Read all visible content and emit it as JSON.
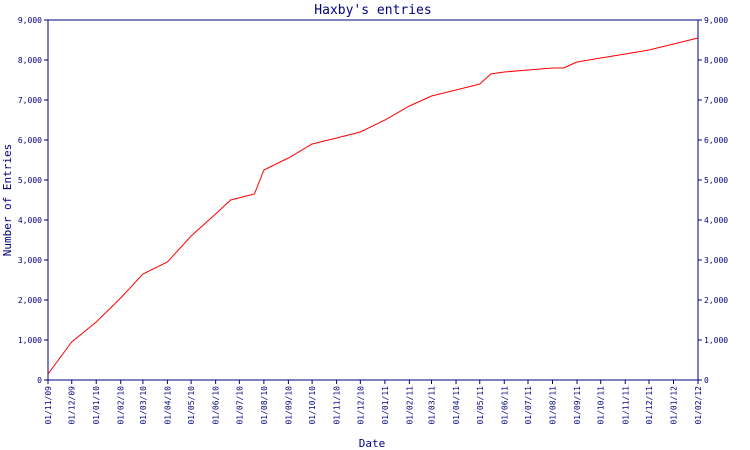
{
  "chart_data": {
    "type": "line",
    "title": "Haxby's entries",
    "xlabel": "Date",
    "ylabel": "Number of Entries",
    "ylim": [
      0,
      9000
    ],
    "yticks": [
      0,
      1000,
      2000,
      3000,
      4000,
      5000,
      6000,
      7000,
      8000,
      9000
    ],
    "ytick_labels": [
      "0",
      "1,000",
      "2,000",
      "3,000",
      "4,000",
      "5,000",
      "6,000",
      "7,000",
      "8,000",
      "9,000"
    ],
    "xticks": [
      "01/11/09",
      "01/12/09",
      "01/01/10",
      "01/02/10",
      "01/03/10",
      "01/04/10",
      "01/05/10",
      "01/06/10",
      "01/07/10",
      "01/08/10",
      "01/09/10",
      "01/10/10",
      "01/11/10",
      "01/12/10",
      "01/01/11",
      "01/02/11",
      "01/03/11",
      "01/04/11",
      "01/05/11",
      "01/06/11",
      "01/07/11",
      "01/08/11",
      "01/09/11",
      "01/10/11",
      "01/11/11",
      "01/12/11",
      "01/01/12",
      "01/02/12"
    ],
    "grid": false,
    "line_color": "#ff0000",
    "axis_color": "#000080",
    "series": [
      {
        "x": [
          "2009-11-01",
          "2009-12-01",
          "2010-01-01",
          "2010-02-01",
          "2010-03-01",
          "2010-04-01",
          "2010-05-01",
          "2010-06-01",
          "2010-06-20",
          "2010-07-10",
          "2010-07-20",
          "2010-08-01",
          "2010-09-01",
          "2010-10-01",
          "2010-11-01",
          "2010-12-01",
          "2011-01-01",
          "2011-02-01",
          "2011-03-01",
          "2011-04-01",
          "2011-05-01",
          "2011-05-15",
          "2011-06-01",
          "2011-07-01",
          "2011-08-01",
          "2011-08-15",
          "2011-09-01",
          "2011-10-01",
          "2011-11-01",
          "2011-12-01",
          "2012-01-01",
          "2012-02-01"
        ],
        "y": [
          150,
          950,
          1450,
          2050,
          2650,
          2950,
          3600,
          4150,
          4500,
          4600,
          4650,
          5250,
          5550,
          5900,
          6050,
          6200,
          6500,
          6850,
          7100,
          7250,
          7400,
          7650,
          7700,
          7750,
          7800,
          7800,
          7950,
          8050,
          8150,
          8250,
          8400,
          8550
        ]
      }
    ]
  }
}
